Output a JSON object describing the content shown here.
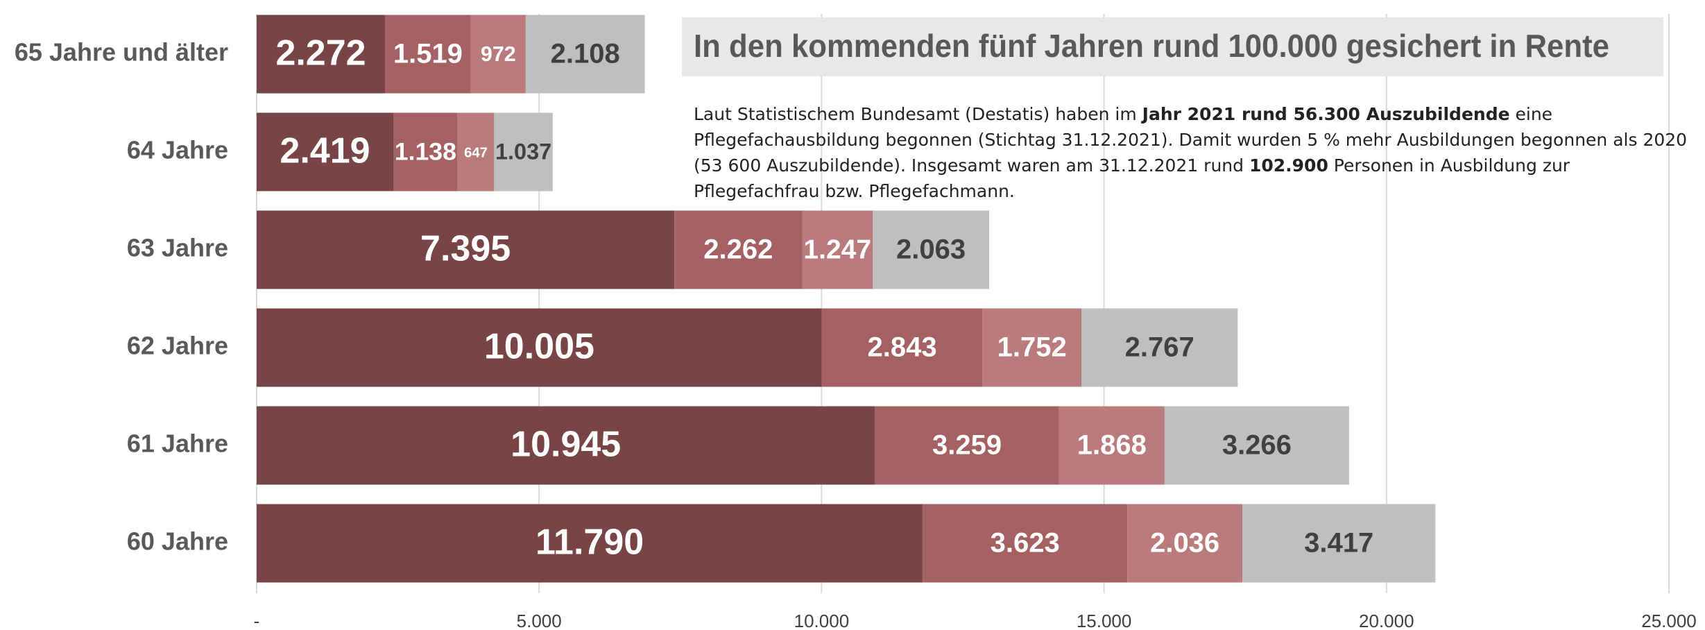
{
  "chart_data": {
    "type": "stacked-bar-horizontal",
    "title": "In den kommenden fünf Jahren rund 100.000 gesichert in Rente",
    "note": [
      {
        "text": "Laut Statistischem Bundesamt (Destatis) haben im ",
        "bold": false
      },
      {
        "text": "Jahr 2021 rund 56.300 Auszubildende",
        "bold": true
      },
      {
        "text": " eine Pflegefachausbildung begonnen (Stichtag 31.12.2021). Damit wurden 5 % mehr Ausbildungen begonnen als 2020 (53 600 Auszubildende). Insgesamt waren am 31.12.2021 rund ",
        "bold": false
      },
      {
        "text": "102.900",
        "bold": true
      },
      {
        "text": " Personen in Ausbildung zur Pflegefachfrau bzw. Pflegefachmann.",
        "bold": false
      }
    ],
    "categories": [
      "65 Jahre und älter",
      "64 Jahre",
      "63 Jahre",
      "62 Jahre",
      "61 Jahre",
      "60 Jahre"
    ],
    "series": [
      {
        "color": "#784446",
        "label_color": "#ffffff",
        "values": [
          2272,
          2419,
          7395,
          10005,
          10945,
          11790
        ],
        "value_labels": [
          "2.272",
          "2.419",
          "7.395",
          "10.005",
          "10.945",
          "11.790"
        ]
      },
      {
        "color": "#a56062",
        "label_color": "#ffffff",
        "values": [
          1519,
          1138,
          2262,
          2843,
          3259,
          3623
        ],
        "value_labels": [
          "1.519",
          "1.138",
          "2.262",
          "2.843",
          "3.259",
          "3.623"
        ]
      },
      {
        "color": "#b97b7c",
        "label_color": "#ffffff",
        "values": [
          972,
          647,
          1247,
          1752,
          1868,
          2036
        ],
        "value_labels": [
          "972",
          "647",
          "1.247",
          "1.752",
          "1.868",
          "2.036"
        ]
      },
      {
        "color": "#bfbfbf",
        "label_color": "#404040",
        "values": [
          2108,
          1037,
          2063,
          2767,
          3266,
          3417
        ],
        "value_labels": [
          "2.108",
          "1.037",
          "2.063",
          "2.767",
          "3.266",
          "3.417"
        ]
      }
    ],
    "xlim": [
      0,
      25000
    ],
    "xticks": [
      {
        "value": 0,
        "label": "-"
      },
      {
        "value": 5000,
        "label": "5.000"
      },
      {
        "value": 10000,
        "label": "10.000"
      },
      {
        "value": 15000,
        "label": "15.000"
      },
      {
        "value": 20000,
        "label": "20.000"
      },
      {
        "value": 25000,
        "label": "25.000"
      }
    ],
    "grid": true
  }
}
